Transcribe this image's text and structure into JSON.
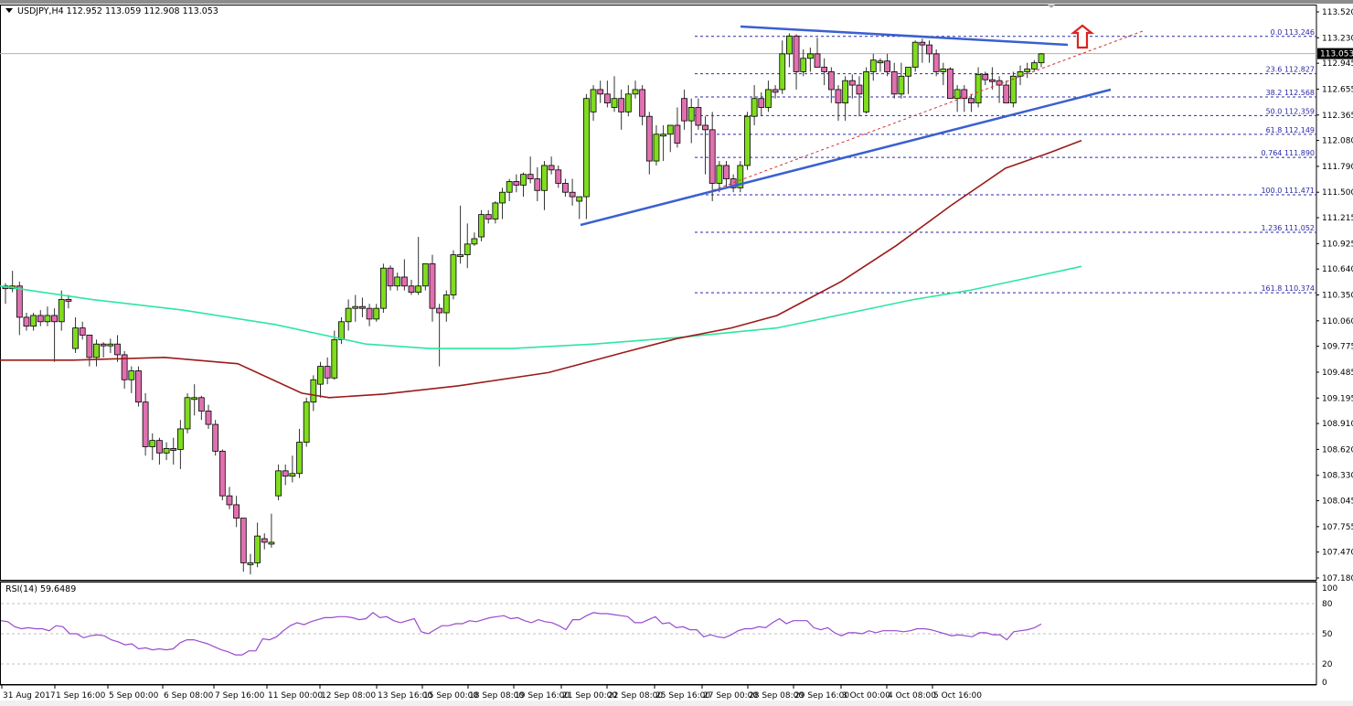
{
  "header": {
    "symbol": "USDJPY,H4",
    "ohlc": "112.952 113.059 112.908 113.053",
    "title_line": "USDJPY,H4  112.952 113.059 112.908 113.053"
  },
  "rsi": {
    "label": "RSI(14) 59.6489",
    "levels": [
      "100",
      "80",
      "50",
      "20",
      "0"
    ]
  },
  "price_axis": {
    "labels": [
      "113.520",
      "113.230",
      "112.945",
      "112.655",
      "112.365",
      "112.080",
      "111.790",
      "111.500",
      "111.215",
      "110.925",
      "110.640",
      "110.350",
      "110.060",
      "109.775",
      "109.485",
      "109.195",
      "108.910",
      "108.620",
      "108.330",
      "108.045",
      "107.755",
      "107.470",
      "107.180"
    ],
    "current_price": "113.053"
  },
  "time_axis": {
    "labels": [
      "31 Aug 2017",
      "1 Sep 16:00",
      "5 Sep 00:00",
      "6 Sep 08:00",
      "7 Sep 16:00",
      "11 Sep 00:00",
      "12 Sep 08:00",
      "13 Sep 16:00",
      "15 Sep 00:00",
      "18 Sep 08:00",
      "19 Sep 16:00",
      "21 Sep 00:00",
      "22 Sep 08:00",
      "25 Sep 16:00",
      "27 Sep 00:00",
      "28 Sep 08:00",
      "29 Sep 16:00",
      "3 Oct 00:00",
      "4 Oct 08:00",
      "5 Oct 16:00"
    ]
  },
  "fibonacci": [
    {
      "label": "0.0 113.246",
      "price": 113.246
    },
    {
      "label": "23.6 112.827",
      "price": 112.827
    },
    {
      "label": "38.2 112.568",
      "price": 112.568
    },
    {
      "label": "50.0 112.359",
      "price": 112.359
    },
    {
      "label": "61.8 112.149",
      "price": 112.149
    },
    {
      "label": "0.764 111.890",
      "price": 111.89
    },
    {
      "label": "100.0 111.471",
      "price": 111.471
    },
    {
      "label": "1.236 111.052",
      "price": 111.052
    },
    {
      "label": "161.8 110.374",
      "price": 110.374
    }
  ],
  "colors": {
    "bull_candle": "#7fdc1e",
    "bear_candle": "#e070b0",
    "wick": "#333333",
    "ma_fast": "#9b1a1a",
    "ma_slow": "#2ee6a0",
    "trendline": "#3a60d0",
    "fib": "#2a2aa8",
    "rsi_line": "#9a4ad0",
    "arrow": "#e02020",
    "dotted_trend": "#d03030"
  },
  "chart_data": [
    {
      "type": "candlestick",
      "title": "USDJPY,H4",
      "subtitle": "O 112.952 H 113.059 L 112.908 C 113.053",
      "xlabel": "",
      "ylabel": "",
      "ylim": [
        107.18,
        113.52
      ],
      "grid": false,
      "x_ticks": [
        "31 Aug 2017",
        "1 Sep 16:00",
        "5 Sep 00:00",
        "6 Sep 08:00",
        "7 Sep 16:00",
        "11 Sep 00:00",
        "12 Sep 08:00",
        "13 Sep 16:00",
        "15 Sep 00:00",
        "18 Sep 08:00",
        "19 Sep 16:00",
        "21 Sep 00:00",
        "22 Sep 08:00",
        "25 Sep 16:00",
        "27 Sep 00:00",
        "28 Sep 08:00",
        "29 Sep 16:00",
        "3 Oct 00:00",
        "4 Oct 08:00",
        "5 Oct 16:00"
      ],
      "last_price": 113.053,
      "candles": [
        [
          110.45,
          110.48,
          110.25,
          110.42
        ],
        [
          110.42,
          110.62,
          110.38,
          110.45
        ],
        [
          110.45,
          110.5,
          109.9,
          110.1
        ],
        [
          110.1,
          110.15,
          109.95,
          110.0
        ],
        [
          110.0,
          110.15,
          109.95,
          110.12
        ],
        [
          110.12,
          110.18,
          110.0,
          110.05
        ],
        [
          110.05,
          110.22,
          110.0,
          110.12
        ],
        [
          110.12,
          110.2,
          109.6,
          110.05
        ],
        [
          110.05,
          110.4,
          109.95,
          110.3
        ],
        [
          110.3,
          110.35,
          110.2,
          110.28
        ],
        [
          109.75,
          110.1,
          109.7,
          109.98
        ],
        [
          109.98,
          110.05,
          109.85,
          109.9
        ],
        [
          109.9,
          109.9,
          109.55,
          109.65
        ],
        [
          109.65,
          109.85,
          109.55,
          109.8
        ],
        [
          109.8,
          109.82,
          109.65,
          109.78
        ],
        [
          109.78,
          109.86,
          109.7,
          109.8
        ],
        [
          109.8,
          109.9,
          109.6,
          109.68
        ],
        [
          109.68,
          109.72,
          109.3,
          109.4
        ],
        [
          109.4,
          109.55,
          109.25,
          109.5
        ],
        [
          109.5,
          109.55,
          109.1,
          109.15
        ],
        [
          109.15,
          109.25,
          108.55,
          108.65
        ],
        [
          108.65,
          108.8,
          108.5,
          108.72
        ],
        [
          108.72,
          108.75,
          108.45,
          108.58
        ],
        [
          108.58,
          108.7,
          108.5,
          108.63
        ],
        [
          108.63,
          108.75,
          108.45,
          108.62
        ],
        [
          108.62,
          108.95,
          108.4,
          108.85
        ],
        [
          108.85,
          109.25,
          108.8,
          109.2
        ],
        [
          109.2,
          109.35,
          109.0,
          109.2
        ],
        [
          109.2,
          109.22,
          108.95,
          109.05
        ],
        [
          109.05,
          109.12,
          108.85,
          108.9
        ],
        [
          108.9,
          108.95,
          108.55,
          108.6
        ],
        [
          108.6,
          108.62,
          108.05,
          108.1
        ],
        [
          108.1,
          108.2,
          107.95,
          108.0
        ],
        [
          108.0,
          108.1,
          107.75,
          107.85
        ],
        [
          107.85,
          107.85,
          107.25,
          107.35
        ],
        [
          107.35,
          107.45,
          107.22,
          107.35
        ],
        [
          107.35,
          107.8,
          107.3,
          107.65
        ],
        [
          107.62,
          107.68,
          107.5,
          107.58
        ],
        [
          107.58,
          107.9,
          107.52,
          107.58
        ],
        [
          108.1,
          108.45,
          108.05,
          108.38
        ],
        [
          108.38,
          108.45,
          108.22,
          108.32
        ],
        [
          108.32,
          108.55,
          108.25,
          108.35
        ],
        [
          108.35,
          108.85,
          108.3,
          108.7
        ],
        [
          108.7,
          109.2,
          108.65,
          109.15
        ],
        [
          109.15,
          109.45,
          109.05,
          109.4
        ],
        [
          109.35,
          109.6,
          109.2,
          109.55
        ],
        [
          109.55,
          109.65,
          109.35,
          109.42
        ],
        [
          109.42,
          109.95,
          109.4,
          109.85
        ],
        [
          109.85,
          110.1,
          109.8,
          110.05
        ],
        [
          110.05,
          110.3,
          109.95,
          110.2
        ],
        [
          110.2,
          110.35,
          110.05,
          110.22
        ],
        [
          110.22,
          110.32,
          110.1,
          110.2
        ],
        [
          110.2,
          110.25,
          110.0,
          110.08
        ],
        [
          110.08,
          110.25,
          110.05,
          110.2
        ],
        [
          110.2,
          110.7,
          110.15,
          110.65
        ],
        [
          110.65,
          110.68,
          110.4,
          110.45
        ],
        [
          110.45,
          110.6,
          110.4,
          110.55
        ],
        [
          110.55,
          110.75,
          110.4,
          110.45
        ],
        [
          110.45,
          110.52,
          110.35,
          110.38
        ],
        [
          110.38,
          111.0,
          110.35,
          110.45
        ],
        [
          110.45,
          110.7,
          110.4,
          110.7
        ],
        [
          110.7,
          110.8,
          110.05,
          110.2
        ],
        [
          110.2,
          110.25,
          109.55,
          110.15
        ],
        [
          110.15,
          110.4,
          110.05,
          110.35
        ],
        [
          110.35,
          110.85,
          110.3,
          110.8
        ],
        [
          110.8,
          111.35,
          110.7,
          110.8
        ],
        [
          110.8,
          111.15,
          110.65,
          110.92
        ],
        [
          110.92,
          111.05,
          110.9,
          110.98
        ],
        [
          111.0,
          111.3,
          110.95,
          111.25
        ],
        [
          111.25,
          111.3,
          111.15,
          111.2
        ],
        [
          111.2,
          111.4,
          111.15,
          111.38
        ],
        [
          111.38,
          111.55,
          111.2,
          111.5
        ],
        [
          111.5,
          111.65,
          111.4,
          111.62
        ],
        [
          111.62,
          111.7,
          111.5,
          111.58
        ],
        [
          111.58,
          111.72,
          111.45,
          111.7
        ],
        [
          111.7,
          111.9,
          111.6,
          111.65
        ],
        [
          111.65,
          111.78,
          111.4,
          111.52
        ],
        [
          111.52,
          111.85,
          111.3,
          111.8
        ],
        [
          111.8,
          111.9,
          111.7,
          111.75
        ],
        [
          111.75,
          111.8,
          111.55,
          111.6
        ],
        [
          111.6,
          111.65,
          111.45,
          111.5
        ],
        [
          111.5,
          111.65,
          111.35,
          111.45
        ],
        [
          111.4,
          111.45,
          111.2,
          111.45
        ],
        [
          111.45,
          112.6,
          111.2,
          112.55
        ],
        [
          112.4,
          112.7,
          112.3,
          112.65
        ],
        [
          112.65,
          112.75,
          112.5,
          112.6
        ],
        [
          112.6,
          112.75,
          112.45,
          112.5
        ],
        [
          112.45,
          112.8,
          112.4,
          112.55
        ],
        [
          112.55,
          112.65,
          112.2,
          112.4
        ],
        [
          112.4,
          112.7,
          112.35,
          112.6
        ],
        [
          112.6,
          112.75,
          112.55,
          112.65
        ],
        [
          112.65,
          112.7,
          112.25,
          112.35
        ],
        [
          112.35,
          112.4,
          111.7,
          111.85
        ],
        [
          111.85,
          112.25,
          111.8,
          112.15
        ],
        [
          112.15,
          112.25,
          111.85,
          112.15
        ],
        [
          112.15,
          112.25,
          111.95,
          112.25
        ],
        [
          112.25,
          112.45,
          112.0,
          112.05
        ],
        [
          112.55,
          112.65,
          112.2,
          112.3
        ],
        [
          112.3,
          112.55,
          112.05,
          112.45
        ],
        [
          112.45,
          112.55,
          112.2,
          112.25
        ],
        [
          112.25,
          112.35,
          111.7,
          112.2
        ],
        [
          112.2,
          112.4,
          111.4,
          111.6
        ],
        [
          111.6,
          111.85,
          111.5,
          111.8
        ],
        [
          111.8,
          111.85,
          111.55,
          111.65
        ],
        [
          111.65,
          111.7,
          111.5,
          111.55
        ],
        [
          111.55,
          111.85,
          111.5,
          111.8
        ],
        [
          111.8,
          112.4,
          111.75,
          112.35
        ],
        [
          112.35,
          112.7,
          112.25,
          112.55
        ],
        [
          112.55,
          112.62,
          112.35,
          112.45
        ],
        [
          112.45,
          112.75,
          112.4,
          112.65
        ],
        [
          112.65,
          112.7,
          112.55,
          112.62
        ],
        [
          112.65,
          113.2,
          112.6,
          113.05
        ],
        [
          113.05,
          113.28,
          112.9,
          113.25
        ],
        [
          113.25,
          113.27,
          112.65,
          112.85
        ],
        [
          112.85,
          113.1,
          112.8,
          113.0
        ],
        [
          113.0,
          113.12,
          112.85,
          113.05
        ],
        [
          113.05,
          113.23,
          112.92,
          112.9
        ],
        [
          112.9,
          113.0,
          112.7,
          112.85
        ],
        [
          112.85,
          112.9,
          112.5,
          112.65
        ],
        [
          112.65,
          112.7,
          112.3,
          112.5
        ],
        [
          112.5,
          112.8,
          112.3,
          112.75
        ],
        [
          112.75,
          112.82,
          112.55,
          112.7
        ],
        [
          112.7,
          112.8,
          112.35,
          112.6
        ],
        [
          112.4,
          112.9,
          112.38,
          112.85
        ],
        [
          112.85,
          113.05,
          112.75,
          112.98
        ],
        [
          112.95,
          113.0,
          112.85,
          112.97
        ],
        [
          112.97,
          113.05,
          112.8,
          112.85
        ],
        [
          112.85,
          112.95,
          112.55,
          112.6
        ],
        [
          112.6,
          112.95,
          112.55,
          112.8
        ],
        [
          112.8,
          112.9,
          112.6,
          112.9
        ],
        [
          112.9,
          113.2,
          112.85,
          113.18
        ],
        [
          113.18,
          113.22,
          112.95,
          113.15
        ],
        [
          113.15,
          113.2,
          112.95,
          113.05
        ],
        [
          113.05,
          113.1,
          112.8,
          112.85
        ],
        [
          112.85,
          112.95,
          112.7,
          112.88
        ],
        [
          112.88,
          112.9,
          112.55,
          112.55
        ],
        [
          112.55,
          112.7,
          112.4,
          112.65
        ],
        [
          112.65,
          112.7,
          112.4,
          112.55
        ],
        [
          112.55,
          112.6,
          112.4,
          112.5
        ],
        [
          112.5,
          112.9,
          112.45,
          112.82
        ],
        [
          112.82,
          112.85,
          112.7,
          112.76
        ],
        [
          112.76,
          112.9,
          112.65,
          112.75
        ],
        [
          112.75,
          112.8,
          112.5,
          112.7
        ],
        [
          112.7,
          112.75,
          112.55,
          112.5
        ],
        [
          112.5,
          112.85,
          112.45,
          112.8
        ],
        [
          112.8,
          112.92,
          112.7,
          112.85
        ],
        [
          112.85,
          112.95,
          112.78,
          112.88
        ],
        [
          112.88,
          112.98,
          112.85,
          112.95
        ],
        [
          112.95,
          113.06,
          112.9,
          113.05
        ]
      ],
      "series": [
        {
          "name": "MA slow (green)",
          "values_desc": "from ~110.45 at left declining to ~109.75 at 15 Sep, rising to ~110.67 at 5 Oct"
        },
        {
          "name": "MA fast (dark red)",
          "values_desc": "~109.7 at left, dip to ~109.20 at 12 Sep, rising to ~112.08 at 5 Oct"
        }
      ],
      "annotations": [
        "Fibonacci retracement levels 0.0 to 161.8",
        "Descending trendline ~113.30 to 113.08",
        "Ascending trendline from ~111.05 to ~112.60",
        "Red up arrow above 113.246"
      ]
    },
    {
      "type": "line",
      "title": "RSI(14) 59.6489",
      "ylim": [
        0,
        100
      ],
      "levels": [
        20,
        50,
        80
      ],
      "values_approx": [
        63,
        62,
        57,
        55,
        56,
        55,
        55,
        53,
        58,
        57,
        50,
        50,
        46,
        48,
        49,
        48,
        44,
        42,
        39,
        40,
        35,
        36,
        34,
        35,
        34,
        35,
        41,
        44,
        44,
        42,
        40,
        37,
        34,
        32,
        29,
        29,
        33,
        33,
        45,
        44,
        47,
        53,
        58,
        61,
        59,
        62,
        64,
        66,
        66,
        67,
        67,
        66,
        64,
        65,
        71,
        66,
        67,
        63,
        61,
        63,
        65,
        52,
        50,
        54,
        58,
        58,
        60,
        60,
        63,
        62,
        64,
        66,
        67,
        68,
        65,
        66,
        63,
        61,
        64,
        62,
        61,
        58,
        54,
        64,
        64,
        68,
        71,
        70,
        70,
        69,
        68,
        67,
        61,
        61,
        64,
        67,
        60,
        61,
        56,
        57,
        54,
        54,
        47,
        49,
        47,
        46,
        49,
        53,
        55,
        55,
        57,
        56,
        61,
        65,
        60,
        63,
        63,
        63,
        56,
        54,
        56,
        51,
        48,
        51,
        51,
        50,
        53,
        51,
        53,
        53,
        53,
        52,
        53,
        55,
        55,
        54,
        52,
        50,
        48,
        49,
        48,
        47,
        51,
        51,
        49,
        49,
        44,
        52,
        53,
        54,
        56,
        59.65
      ]
    }
  ]
}
